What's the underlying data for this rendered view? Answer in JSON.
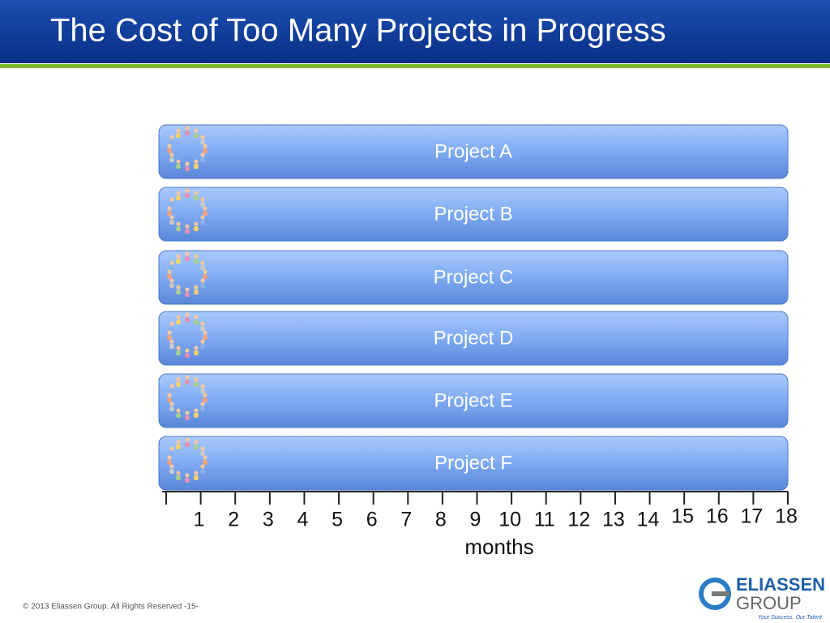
{
  "header": {
    "title": "The Cost of Too Many Projects in Progress"
  },
  "projects": [
    "Project A",
    "Project B",
    "Project C",
    "Project D",
    "Project E",
    "Project F"
  ],
  "timeline": {
    "months": [
      1,
      2,
      3,
      4,
      5,
      6,
      7,
      8,
      9,
      10,
      11,
      12,
      13,
      14,
      15,
      16,
      17,
      18
    ],
    "label": "months"
  },
  "footer": {
    "copyright": "© 2013 Eliassen Group. All Rights Reserved -15-",
    "logo": {
      "line1": "ELIASSEN",
      "line2": "GROUP",
      "tagline": "Your Success, Our Talent"
    }
  }
}
